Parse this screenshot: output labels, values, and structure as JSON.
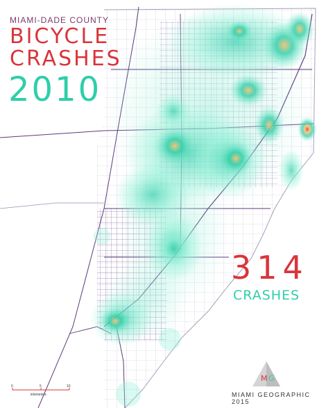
{
  "title": {
    "county": "MIAMI-DADE COUNTY",
    "line1": "BICYCLE",
    "line2": "CRASHES",
    "year": "2010"
  },
  "stats": {
    "count": "314",
    "label": "CRASHES"
  },
  "credit": "MIAMI GEOGRAPHIC 2015",
  "logo": {
    "letters": "MG"
  },
  "scale": {
    "ticks": [
      "0",
      "5",
      "10"
    ],
    "unit": "kilometers"
  },
  "colors": {
    "heat_low": "#8ff0d6",
    "heat_mid": "#2fcea9",
    "heat_high": "#f4c47a",
    "heat_peak": "#e8443e",
    "roads": "#5a3a7a",
    "accent_red": "#d9343a",
    "accent_teal": "#2fcea9"
  }
}
